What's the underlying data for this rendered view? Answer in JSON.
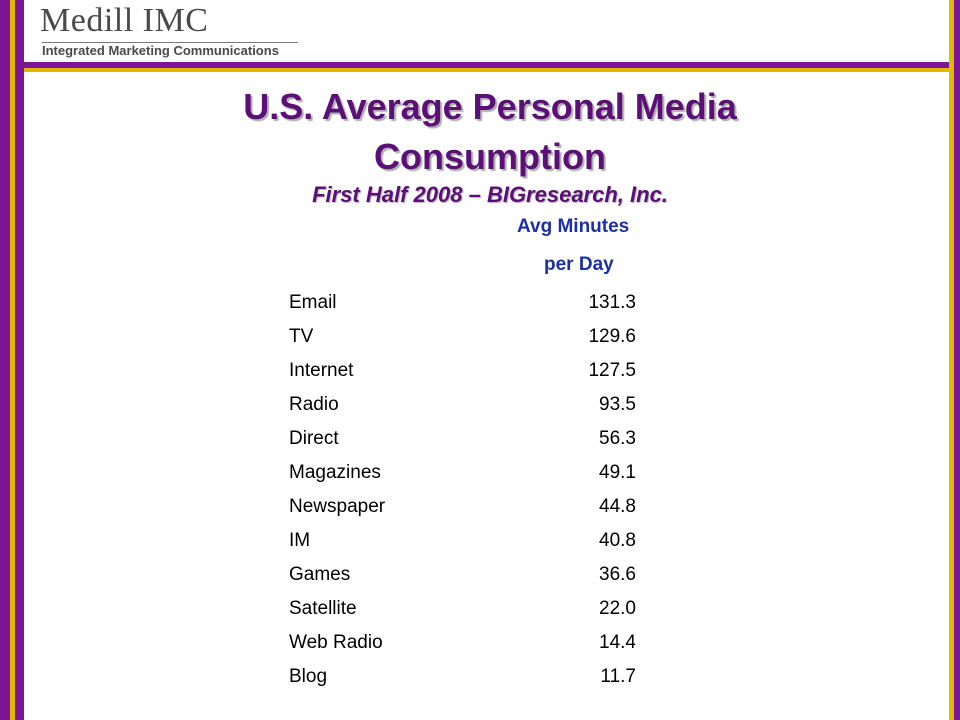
{
  "header": {
    "logo_name": "Medill IMC",
    "logo_subtitle": "Integrated Marketing Communications"
  },
  "slide": {
    "title_line1": "U.S. Average Personal Media",
    "title_line2": "Consumption",
    "subtitle": "First Half 2008 – BIGresearch, Inc.",
    "column_header_line1": "Avg Minutes",
    "column_header_line2": "per Day"
  },
  "table": {
    "rows": [
      {
        "label": "Email",
        "value": "131.3"
      },
      {
        "label": "TV",
        "value": "129.6"
      },
      {
        "label": "Internet",
        "value": "127.5"
      },
      {
        "label": "Radio",
        "value": "93.5"
      },
      {
        "label": "Direct",
        "value": "56.3"
      },
      {
        "label": "Magazines",
        "value": "49.1"
      },
      {
        "label": "Newspaper",
        "value": "44.8"
      },
      {
        "label": "IM",
        "value": "40.8"
      },
      {
        "label": "Games",
        "value": "36.6"
      },
      {
        "label": "Satellite",
        "value": "22.0"
      },
      {
        "label": "Web Radio",
        "value": "14.4"
      },
      {
        "label": "Blog",
        "value": "11.7"
      }
    ]
  },
  "colors": {
    "purple": "#7d1597",
    "gold": "#e3b800",
    "title": "#5d0f78",
    "column_header": "#1c2fa8"
  }
}
